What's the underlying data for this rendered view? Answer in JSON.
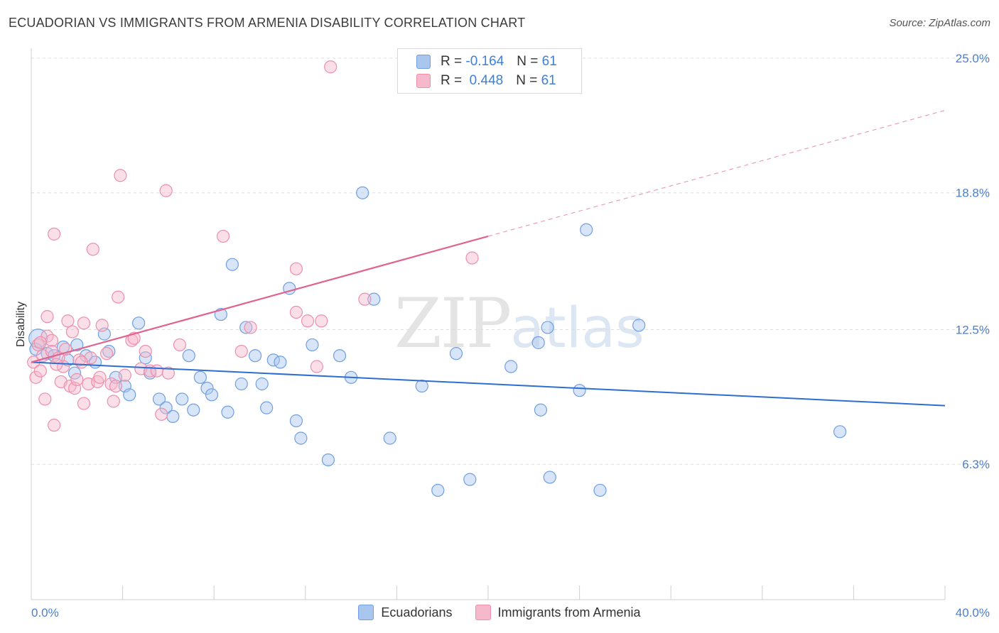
{
  "header": {
    "title": "ECUADORIAN VS IMMIGRANTS FROM ARMENIA DISABILITY CORRELATION CHART",
    "source": "Source: ZipAtlas.com"
  },
  "watermark": {
    "zip": "ZIP",
    "atlas": "atlas"
  },
  "legend": {
    "rows": [
      {
        "r_label": "R =",
        "r_value": "-0.164",
        "n_label": "N =",
        "n_value": "61",
        "color": "#a9c6ef"
      },
      {
        "r_label": "R =",
        "r_value": "0.448",
        "n_label": "N =",
        "n_value": "61",
        "color": "#f6b8cb"
      }
    ]
  },
  "bottom_legend": {
    "items": [
      {
        "label": "Ecuadorians",
        "color": "#a9c6ef"
      },
      {
        "label": "Immigrants from Armenia",
        "color": "#f6b8cb"
      }
    ]
  },
  "chart_data": {
    "type": "scatter",
    "title": "ECUADORIAN VS IMMIGRANTS FROM ARMENIA DISABILITY CORRELATION CHART",
    "xlabel": "",
    "ylabel": "Disability",
    "xlim": [
      0,
      40
    ],
    "ylim": [
      0,
      26
    ],
    "x_tick_labels": [
      "0.0%",
      "40.0%"
    ],
    "y_ticks": [
      6.3,
      12.5,
      18.8,
      25.0
    ],
    "y_tick_labels": [
      "6.3%",
      "12.5%",
      "18.8%",
      "25.0%"
    ],
    "grid": true,
    "legend_position": "top-center",
    "series": [
      {
        "name": "Ecuadorians",
        "color": "#6f9fe0",
        "fill": "#a9c6ef",
        "trend": {
          "x": [
            0,
            40
          ],
          "y": [
            11.0,
            9.0
          ],
          "style": "solid",
          "color": "#2c6fd0"
        },
        "points": [
          [
            0.3,
            12.1
          ],
          [
            0.7,
            11.4
          ],
          [
            1.0,
            11.3
          ],
          [
            1.4,
            11.7
          ],
          [
            1.9,
            10.5
          ],
          [
            2.4,
            11.3
          ],
          [
            2.8,
            11.0
          ],
          [
            3.2,
            12.3
          ],
          [
            3.4,
            11.5
          ],
          [
            3.7,
            10.3
          ],
          [
            4.1,
            9.9
          ],
          [
            4.3,
            9.5
          ],
          [
            4.7,
            12.8
          ],
          [
            5.0,
            11.2
          ],
          [
            5.2,
            10.5
          ],
          [
            5.6,
            9.3
          ],
          [
            5.9,
            8.9
          ],
          [
            6.2,
            8.5
          ],
          [
            6.6,
            9.3
          ],
          [
            6.9,
            11.3
          ],
          [
            7.1,
            8.8
          ],
          [
            7.4,
            10.3
          ],
          [
            7.7,
            9.8
          ],
          [
            7.9,
            9.5
          ],
          [
            8.3,
            13.2
          ],
          [
            8.6,
            8.7
          ],
          [
            8.8,
            15.5
          ],
          [
            9.2,
            10.0
          ],
          [
            9.4,
            12.6
          ],
          [
            9.8,
            11.3
          ],
          [
            10.1,
            10.0
          ],
          [
            10.3,
            8.9
          ],
          [
            10.6,
            11.1
          ],
          [
            10.9,
            11.0
          ],
          [
            11.3,
            14.4
          ],
          [
            11.6,
            8.3
          ],
          [
            11.8,
            7.5
          ],
          [
            12.3,
            11.8
          ],
          [
            13.0,
            6.5
          ],
          [
            13.5,
            11.3
          ],
          [
            14.0,
            10.3
          ],
          [
            14.5,
            18.8
          ],
          [
            15.0,
            13.9
          ],
          [
            15.7,
            7.5
          ],
          [
            17.1,
            9.9
          ],
          [
            17.8,
            5.1
          ],
          [
            18.6,
            11.4
          ],
          [
            19.2,
            5.6
          ],
          [
            21.0,
            10.8
          ],
          [
            22.2,
            11.9
          ],
          [
            22.3,
            8.8
          ],
          [
            22.6,
            12.6
          ],
          [
            22.7,
            5.7
          ],
          [
            24.0,
            9.7
          ],
          [
            24.3,
            17.1
          ],
          [
            24.9,
            5.1
          ],
          [
            26.6,
            12.7
          ],
          [
            35.4,
            7.8
          ],
          [
            0.2,
            11.6
          ],
          [
            1.6,
            11.1
          ],
          [
            2.0,
            11.8
          ]
        ]
      },
      {
        "name": "Immigrants from Armenia",
        "color": "#ec8fab",
        "fill": "#f6b8cb",
        "trend": {
          "x": [
            0,
            20
          ],
          "y": [
            11.0,
            16.8
          ],
          "x_dashed": [
            20,
            40
          ],
          "y_dashed": [
            16.8,
            22.6
          ],
          "style": "solid+dashed",
          "color": "#e0628f"
        },
        "points": [
          [
            0.1,
            11.0
          ],
          [
            0.2,
            10.3
          ],
          [
            0.3,
            11.8
          ],
          [
            0.4,
            10.6
          ],
          [
            0.5,
            11.3
          ],
          [
            0.6,
            9.3
          ],
          [
            0.7,
            12.2
          ],
          [
            0.7,
            13.1
          ],
          [
            0.9,
            12.0
          ],
          [
            0.9,
            11.5
          ],
          [
            1.0,
            8.1
          ],
          [
            1.0,
            16.9
          ],
          [
            1.2,
            11.2
          ],
          [
            1.3,
            10.1
          ],
          [
            1.4,
            10.8
          ],
          [
            1.5,
            11.6
          ],
          [
            1.6,
            12.9
          ],
          [
            1.7,
            9.9
          ],
          [
            1.8,
            12.4
          ],
          [
            1.9,
            9.8
          ],
          [
            2.0,
            10.2
          ],
          [
            2.1,
            11.1
          ],
          [
            2.3,
            12.8
          ],
          [
            2.3,
            9.1
          ],
          [
            2.5,
            10.0
          ],
          [
            2.6,
            11.2
          ],
          [
            2.7,
            16.2
          ],
          [
            2.9,
            10.1
          ],
          [
            3.0,
            10.3
          ],
          [
            3.1,
            12.7
          ],
          [
            3.3,
            11.4
          ],
          [
            3.5,
            10.0
          ],
          [
            3.6,
            9.2
          ],
          [
            3.7,
            9.9
          ],
          [
            3.8,
            14.0
          ],
          [
            3.9,
            19.6
          ],
          [
            4.1,
            10.4
          ],
          [
            4.4,
            12.0
          ],
          [
            4.5,
            12.1
          ],
          [
            4.8,
            10.7
          ],
          [
            5.0,
            11.5
          ],
          [
            5.2,
            10.6
          ],
          [
            5.5,
            10.6
          ],
          [
            5.7,
            8.6
          ],
          [
            5.9,
            18.9
          ],
          [
            6.5,
            11.8
          ],
          [
            8.4,
            16.8
          ],
          [
            9.2,
            11.5
          ],
          [
            9.6,
            12.6
          ],
          [
            11.6,
            15.3
          ],
          [
            11.6,
            13.3
          ],
          [
            12.1,
            12.9
          ],
          [
            12.5,
            10.8
          ],
          [
            12.7,
            12.9
          ],
          [
            13.1,
            24.6
          ],
          [
            14.6,
            13.9
          ],
          [
            19.3,
            15.8
          ],
          [
            0.4,
            11.9
          ],
          [
            1.1,
            10.9
          ],
          [
            2.2,
            11.0
          ],
          [
            6.0,
            10.5
          ]
        ]
      }
    ]
  }
}
